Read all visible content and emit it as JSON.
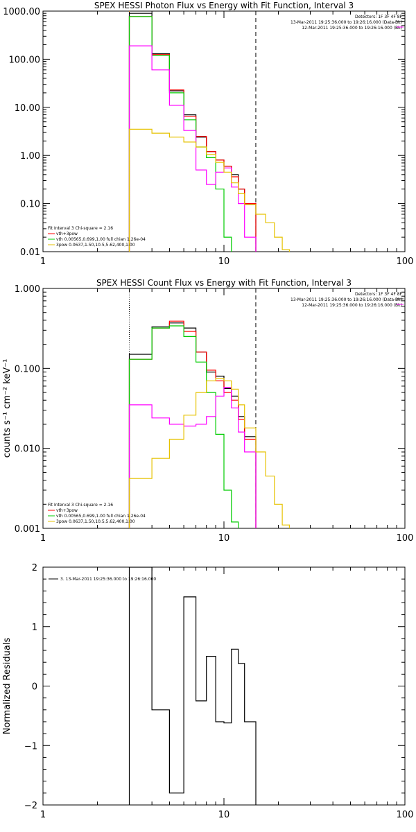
{
  "chart_data": [
    {
      "type": "line",
      "title": "SPEX HESSI Photon Flux vs Energy with Fit Function, Interval 3",
      "xscale": "log",
      "yscale": "log",
      "xlim": [
        1,
        100
      ],
      "ylim": [
        0.01,
        1000
      ],
      "x_tick_labels": [
        "1",
        "10",
        "100"
      ],
      "y_tick_labels": [
        "0.01",
        "0.10",
        "1.00",
        "10.00",
        "100.00",
        "1000.00"
      ],
      "vlines": [
        {
          "x": 3,
          "style": "dotted",
          "color": "#ff9900"
        },
        {
          "x": 15,
          "style": "dashed",
          "color": "#000000"
        }
      ],
      "info_lines": [
        "Detectors: 1F 3F 4F 8F",
        "13-Mar-2011 19:25:36.000 to 19:26:16.000 (Data-Bk)",
        "12-Mar-2011 19:25:36.000 to 19:26:16.000 (Bk)"
      ],
      "fit_lines": [
        "Fit Interval 3   Chi-square = 2.16",
        "vth+3pow",
        "vth 0.00565,0.699,1.00  full chian 1.26e-04",
        "3pow 0.0637,1.50,10.5,5.62,400,1.00"
      ],
      "edges": [
        3,
        4,
        5,
        6,
        7,
        8,
        9,
        10,
        11,
        12,
        13,
        15,
        17,
        19,
        21,
        23
      ],
      "series": [
        {
          "color": "#000000",
          "values": [
            900,
            130,
            22,
            7,
            2.4,
            1.2,
            0.8,
            0.6,
            0.4,
            0.2,
            0.1,
            null,
            null,
            null,
            null
          ]
        },
        {
          "color": "#ff0000",
          "values": [
            770,
            125,
            23,
            6.5,
            2.5,
            1.2,
            0.8,
            0.6,
            0.36,
            0.2,
            0.1,
            null,
            null,
            null,
            null
          ]
        },
        {
          "color": "#00cc00",
          "values": [
            770,
            120,
            20,
            5.5,
            1.5,
            0.9,
            0.2,
            0.02,
            null,
            null,
            null,
            null,
            null,
            null,
            null
          ]
        },
        {
          "color": "#ff00ff",
          "values": [
            190,
            60,
            11,
            3.3,
            0.5,
            0.25,
            0.45,
            0.55,
            0.22,
            0.1,
            0.02,
            null,
            null,
            null,
            null
          ]
        },
        {
          "color": "#e6c200",
          "values": [
            3.5,
            2.9,
            2.4,
            1.9,
            1.5,
            1.05,
            0.72,
            0.45,
            0.27,
            0.16,
            0.095,
            0.06,
            0.04,
            0.02,
            0.011
          ]
        }
      ]
    },
    {
      "type": "line",
      "title": "SPEX HESSI Count Flux vs Energy with Fit Function, Interval 3",
      "xscale": "log",
      "yscale": "log",
      "xlim": [
        1,
        100
      ],
      "ylim": [
        0.001,
        1
      ],
      "x_tick_labels": [
        "1",
        "10",
        "100"
      ],
      "y_tick_labels": [
        "0.001",
        "0.010",
        "0.100",
        "1.000"
      ],
      "ylabel": "counts s⁻¹ cm⁻² keV⁻¹",
      "vlines": [
        {
          "x": 3,
          "style": "dotted",
          "color": "#000000"
        },
        {
          "x": 15,
          "style": "dashed",
          "color": "#000000"
        }
      ],
      "info_lines": [
        "Detectors: 1F 3F 4F 8F",
        "13-Mar-2011 19:25:36.000 to 19:26:16.000 (Data-Bk)",
        "12-Mar-2011 19:25:36.000 to 19:26:16.000 (Bk)"
      ],
      "fit_lines": [
        "Fit Interval 3   Chi-square = 2.16",
        "vth+3pow",
        "vth 0.00565,0.699,1.00  full chian 1.26e-04",
        "3pow 0.0637,1.50,10.5,5.62,400,1.00"
      ],
      "edges": [
        3,
        4,
        5,
        6,
        7,
        8,
        9,
        10,
        11,
        12,
        13,
        15,
        17,
        19,
        21,
        23
      ],
      "series": [
        {
          "color": "#000000",
          "values": [
            0.15,
            0.33,
            0.37,
            0.32,
            0.16,
            0.09,
            0.08,
            0.056,
            0.045,
            0.025,
            0.014,
            null,
            null,
            null,
            null
          ]
        },
        {
          "color": "#ff0000",
          "values": [
            0.13,
            0.32,
            0.39,
            0.29,
            0.16,
            0.095,
            0.07,
            0.05,
            0.04,
            0.023,
            0.013,
            null,
            null,
            null,
            null
          ]
        },
        {
          "color": "#00cc00",
          "values": [
            0.13,
            0.32,
            0.34,
            0.25,
            0.12,
            0.05,
            0.015,
            0.003,
            0.0012,
            null,
            null,
            null,
            null,
            null,
            null
          ]
        },
        {
          "color": "#ff00ff",
          "values": [
            0.035,
            0.024,
            0.02,
            0.019,
            0.02,
            0.025,
            0.045,
            0.058,
            0.032,
            0.016,
            0.009,
            null,
            null,
            null,
            null
          ]
        },
        {
          "color": "#e6c200",
          "values": [
            0.0042,
            0.0075,
            0.013,
            0.026,
            0.05,
            0.07,
            0.075,
            0.07,
            0.055,
            0.035,
            0.018,
            0.009,
            0.0045,
            0.002,
            0.0011
          ]
        }
      ]
    },
    {
      "type": "line",
      "title": "",
      "xscale": "log",
      "yscale": "linear",
      "xlim": [
        1,
        100
      ],
      "ylim": [
        -2,
        2
      ],
      "x_tick_labels": [
        "1",
        "10",
        "100"
      ],
      "y_tick_labels": [
        "−2",
        "−1",
        "0",
        "1",
        "2"
      ],
      "ylabel": "Normalized Residuals",
      "legend": "3. 13-Mar-2011 19:25:36.000 to 19:26:16.000",
      "edges": [
        3,
        4,
        5,
        6,
        7,
        8,
        9,
        10,
        11,
        12,
        13,
        15
      ],
      "series": [
        {
          "color": "#000000",
          "values": [
            2.0,
            -0.4,
            -1.8,
            1.5,
            -0.25,
            0.5,
            -0.6,
            -0.62,
            0.62,
            0.38,
            -0.6
          ]
        }
      ]
    }
  ]
}
